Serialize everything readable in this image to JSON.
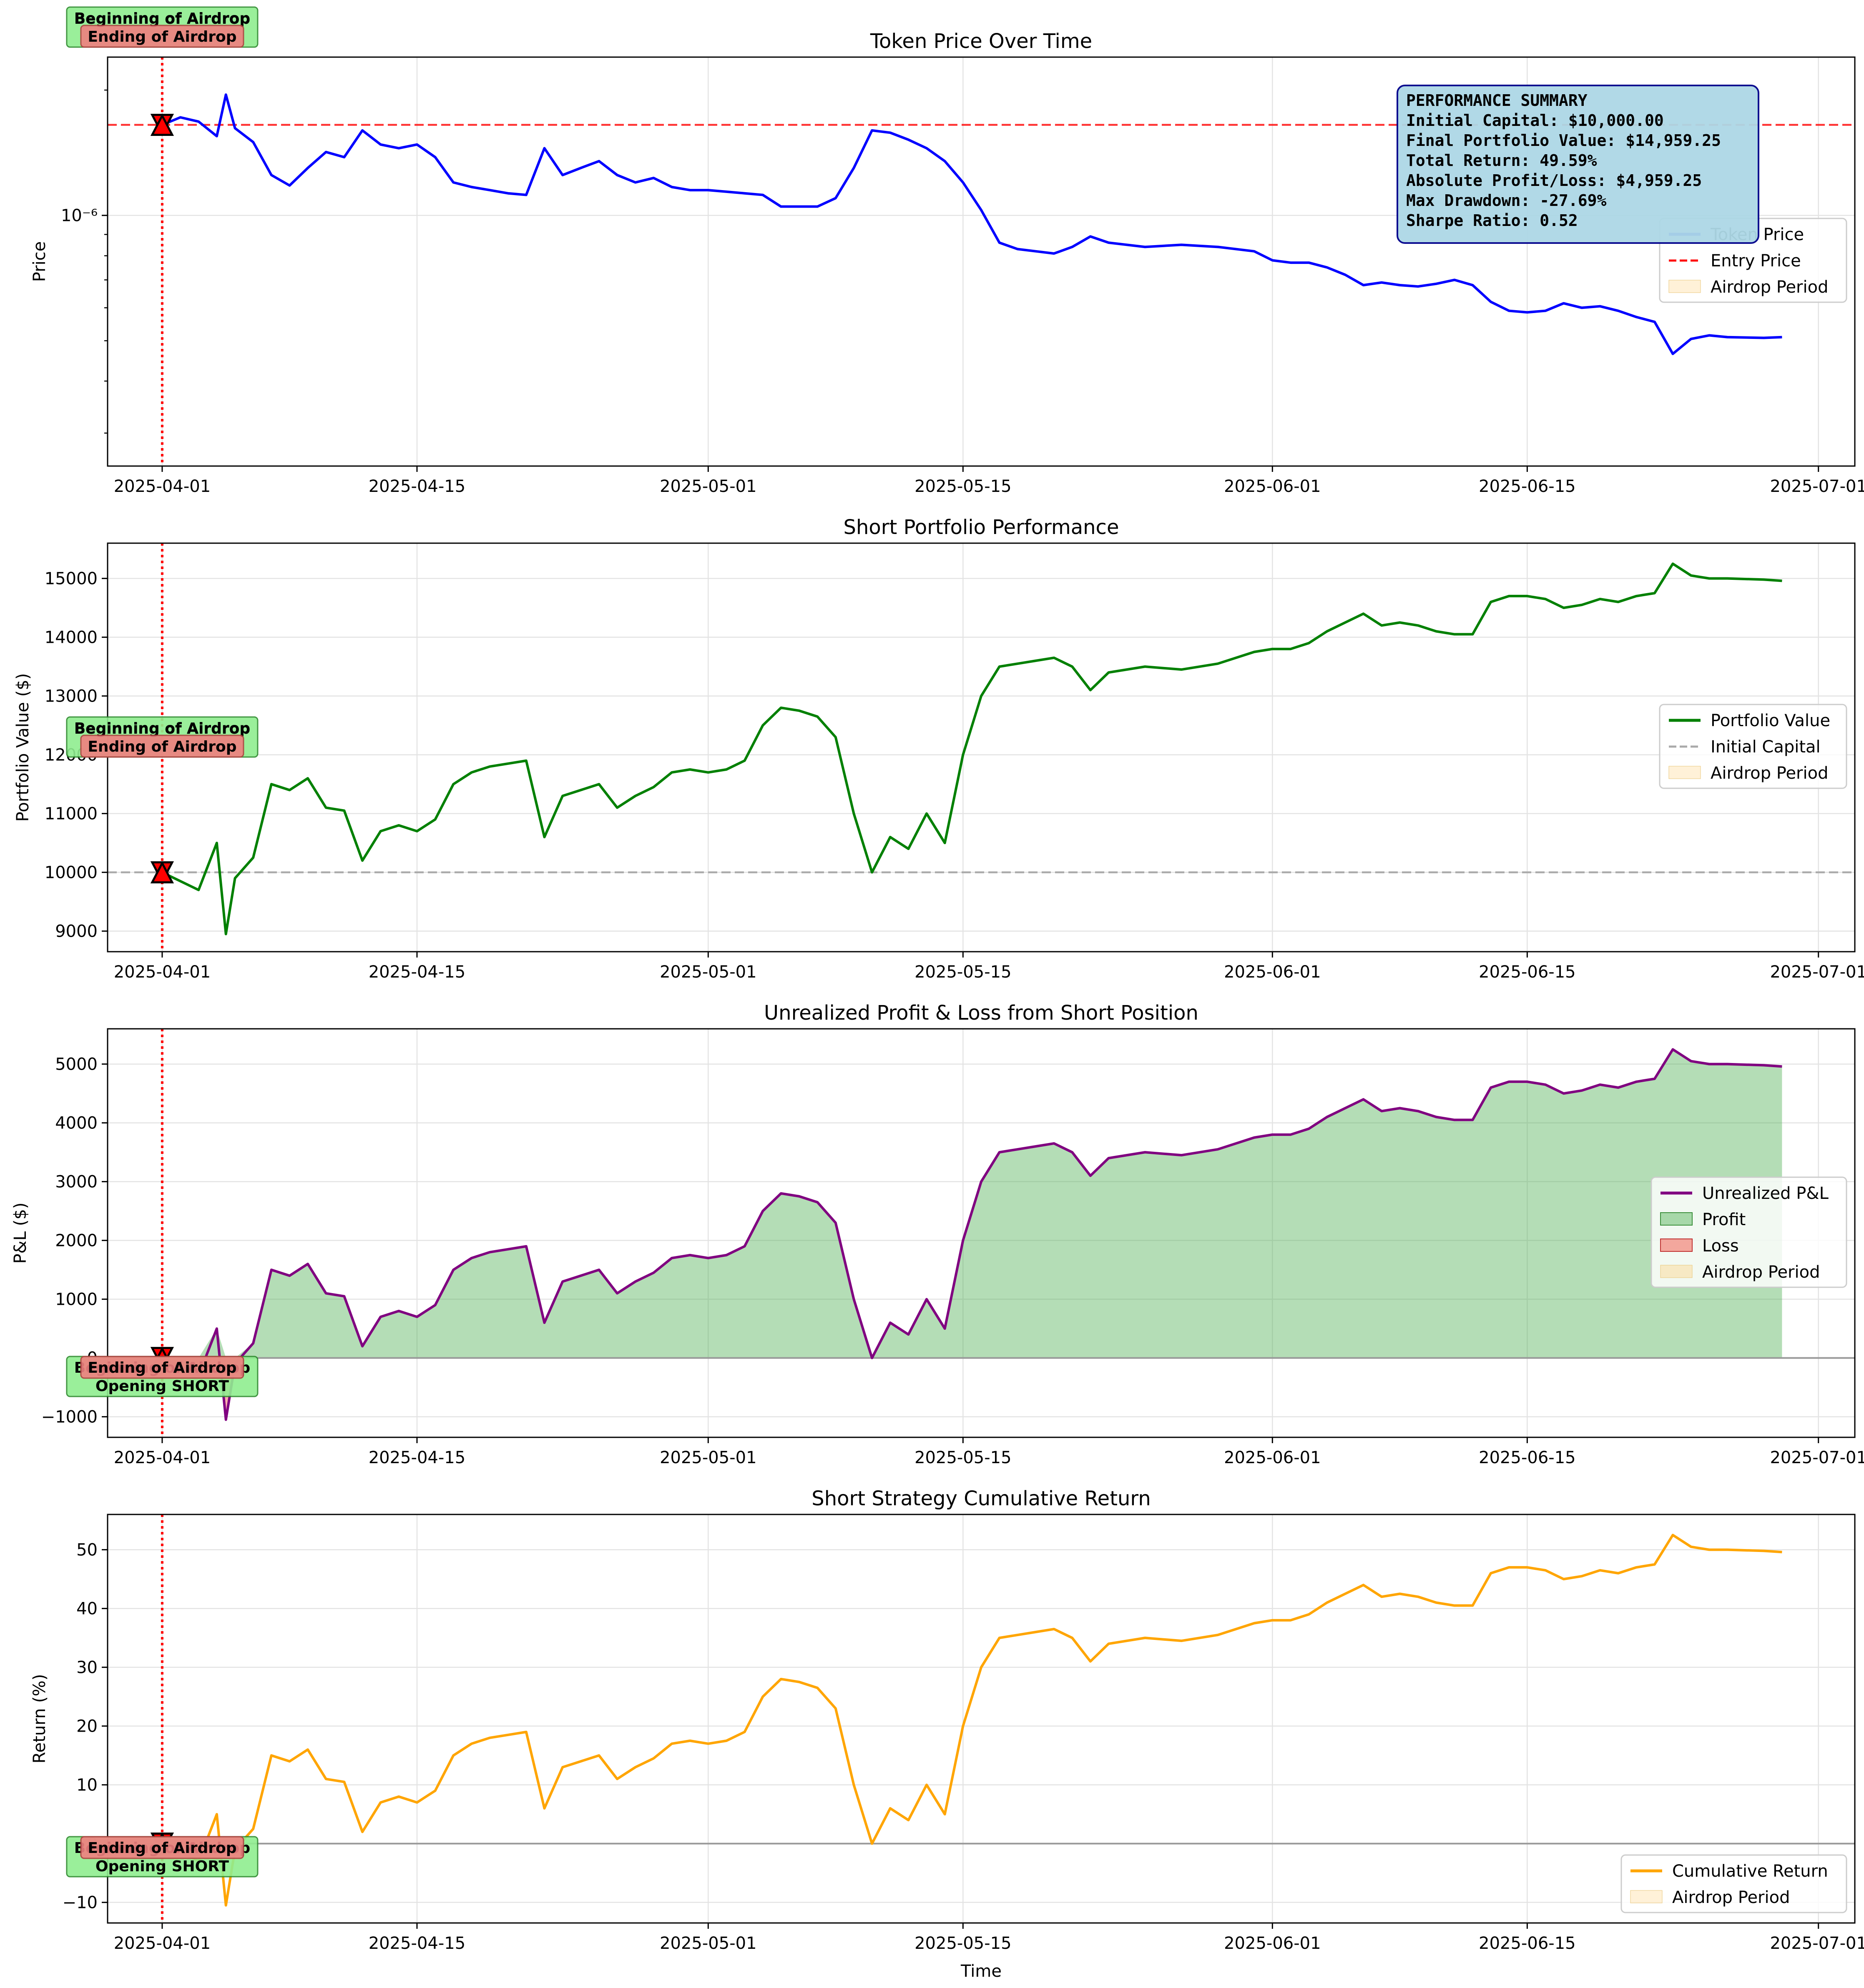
{
  "colors": {
    "price": "#0000ff",
    "portfolio": "#008000",
    "pnl": "#800080",
    "cumret": "#ffa500",
    "entry": "#ff0000",
    "initial": "#aaaaaa",
    "profit_fill": "#4caf50",
    "loss_fill": "#f44336",
    "airdrop_fill": "#ffd27f",
    "vline": "#ff0000",
    "ann_green_bg": "#90ee90",
    "ann_red_bg": "#f08080",
    "summary_bg": "#add8e6"
  },
  "xaxis": {
    "label": "Time",
    "range": [
      "2025-03-29",
      "2025-07-03"
    ],
    "ticks": [
      "2025-04-01",
      "2025-04-15",
      "2025-05-01",
      "2025-05-15",
      "2025-06-01",
      "2025-06-15",
      "2025-07-01"
    ]
  },
  "annotations": {
    "begin": "Beginning of Airdrop",
    "end": "Ending of Airdrop",
    "open_short": "Opening SHORT"
  },
  "chart_data": [
    {
      "type": "line",
      "title": "Token Price Over Time",
      "ylabel": "Price",
      "yscale": "log",
      "ylim": [
        2.5e-07,
        2.4e-06
      ],
      "yticks": [
        {
          "value": 1e-06,
          "label": "10⁻⁶"
        }
      ],
      "legend": {
        "placement": "right",
        "entries": [
          "Token Price",
          "Entry Price",
          "Airdrop Period"
        ]
      },
      "entry_price": 1.65e-06,
      "marker_date": "2025-04-01",
      "series": [
        {
          "name": "Token Price",
          "x": [
            "2025-04-01",
            "2025-04-02",
            "2025-04-03",
            "2025-04-04",
            "2025-04-04T12",
            "2025-04-05",
            "2025-04-06",
            "2025-04-07",
            "2025-04-08",
            "2025-04-09",
            "2025-04-10",
            "2025-04-11",
            "2025-04-12",
            "2025-04-13",
            "2025-04-14",
            "2025-04-15",
            "2025-04-16",
            "2025-04-17",
            "2025-04-18",
            "2025-04-19",
            "2025-04-20",
            "2025-04-21",
            "2025-04-22",
            "2025-04-23",
            "2025-04-24",
            "2025-04-25",
            "2025-04-26",
            "2025-04-27",
            "2025-04-28",
            "2025-04-29",
            "2025-04-30",
            "2025-05-01",
            "2025-05-02",
            "2025-05-03",
            "2025-05-04",
            "2025-05-05",
            "2025-05-06",
            "2025-05-07",
            "2025-05-08",
            "2025-05-09",
            "2025-05-10",
            "2025-05-11",
            "2025-05-12",
            "2025-05-13",
            "2025-05-14",
            "2025-05-15",
            "2025-05-16",
            "2025-05-17",
            "2025-05-18",
            "2025-05-19",
            "2025-05-20",
            "2025-05-21",
            "2025-05-22",
            "2025-05-23",
            "2025-05-25",
            "2025-05-27",
            "2025-05-29",
            "2025-05-31",
            "2025-06-01",
            "2025-06-02",
            "2025-06-03",
            "2025-06-04",
            "2025-06-05",
            "2025-06-06",
            "2025-06-07",
            "2025-06-08",
            "2025-06-09",
            "2025-06-10",
            "2025-06-11",
            "2025-06-12",
            "2025-06-13",
            "2025-06-14",
            "2025-06-15",
            "2025-06-16",
            "2025-06-17",
            "2025-06-18",
            "2025-06-19",
            "2025-06-20",
            "2025-06-21",
            "2025-06-22",
            "2025-06-23",
            "2025-06-24",
            "2025-06-25",
            "2025-06-26",
            "2025-06-28",
            "2025-06-29"
          ],
          "y": [
            1.65e-06,
            1.72e-06,
            1.68e-06,
            1.55e-06,
            1.95e-06,
            1.62e-06,
            1.5e-06,
            1.25e-06,
            1.18e-06,
            1.3e-06,
            1.42e-06,
            1.38e-06,
            1.6e-06,
            1.48e-06,
            1.45e-06,
            1.48e-06,
            1.38e-06,
            1.2e-06,
            1.17e-06,
            1.15e-06,
            1.13e-06,
            1.12e-06,
            1.45e-06,
            1.25e-06,
            1.3e-06,
            1.35e-06,
            1.25e-06,
            1.2e-06,
            1.23e-06,
            1.17e-06,
            1.15e-06,
            1.15e-06,
            1.14e-06,
            1.13e-06,
            1.12e-06,
            1.05e-06,
            1.05e-06,
            1.05e-06,
            1.1e-06,
            1.3e-06,
            1.6e-06,
            1.58e-06,
            1.52e-06,
            1.45e-06,
            1.35e-06,
            1.2e-06,
            1.03e-06,
            8.6e-07,
            8.3e-07,
            8.2e-07,
            8.1e-07,
            8.4e-07,
            8.9e-07,
            8.6e-07,
            8.4e-07,
            8.5e-07,
            8.4e-07,
            8.2e-07,
            7.8e-07,
            7.7e-07,
            7.7e-07,
            7.5e-07,
            7.2e-07,
            6.8e-07,
            6.9e-07,
            6.8e-07,
            6.75e-07,
            6.85e-07,
            7e-07,
            6.8e-07,
            6.2e-07,
            5.9e-07,
            5.85e-07,
            5.9e-07,
            6.15e-07,
            6e-07,
            6.05e-07,
            5.9e-07,
            5.7e-07,
            5.55e-07,
            4.65e-07,
            5.05e-07,
            5.15e-07,
            5.1e-07,
            5.08e-07,
            5.1e-07
          ]
        }
      ]
    },
    {
      "type": "line",
      "title": "Short Portfolio Performance",
      "ylabel": "Portfolio Value ($)",
      "ylim": [
        8650,
        15600
      ],
      "yticks": [
        9000,
        10000,
        11000,
        12000,
        13000,
        14000,
        15000
      ],
      "legend": {
        "placement": "right",
        "entries": [
          "Portfolio Value",
          "Initial Capital",
          "Airdrop Period"
        ]
      },
      "initial_capital": 10000,
      "marker_date": "2025-04-01",
      "series": [
        {
          "name": "Portfolio Value",
          "x": [
            "2025-04-01",
            "2025-04-02",
            "2025-04-03",
            "2025-04-04",
            "2025-04-04T12",
            "2025-04-05",
            "2025-04-06",
            "2025-04-07",
            "2025-04-08",
            "2025-04-09",
            "2025-04-10",
            "2025-04-11",
            "2025-04-12",
            "2025-04-13",
            "2025-04-14",
            "2025-04-15",
            "2025-04-16",
            "2025-04-17",
            "2025-04-18",
            "2025-04-19",
            "2025-04-20",
            "2025-04-21",
            "2025-04-22",
            "2025-04-23",
            "2025-04-24",
            "2025-04-25",
            "2025-04-26",
            "2025-04-27",
            "2025-04-28",
            "2025-04-29",
            "2025-04-30",
            "2025-05-01",
            "2025-05-02",
            "2025-05-03",
            "2025-05-04",
            "2025-05-05",
            "2025-05-06",
            "2025-05-07",
            "2025-05-08",
            "2025-05-09",
            "2025-05-10",
            "2025-05-11",
            "2025-05-12",
            "2025-05-13",
            "2025-05-14",
            "2025-05-15",
            "2025-05-16",
            "2025-05-17",
            "2025-05-18",
            "2025-05-19",
            "2025-05-20",
            "2025-05-21",
            "2025-05-22",
            "2025-05-23",
            "2025-05-25",
            "2025-05-27",
            "2025-05-29",
            "2025-05-31",
            "2025-06-01",
            "2025-06-02",
            "2025-06-03",
            "2025-06-04",
            "2025-06-05",
            "2025-06-06",
            "2025-06-07",
            "2025-06-08",
            "2025-06-09",
            "2025-06-10",
            "2025-06-11",
            "2025-06-12",
            "2025-06-13",
            "2025-06-14",
            "2025-06-15",
            "2025-06-16",
            "2025-06-17",
            "2025-06-18",
            "2025-06-19",
            "2025-06-20",
            "2025-06-21",
            "2025-06-22",
            "2025-06-23",
            "2025-06-24",
            "2025-06-25",
            "2025-06-26",
            "2025-06-28",
            "2025-06-29"
          ],
          "y": [
            10000,
            9850,
            9700,
            10500,
            8950,
            9900,
            10250,
            11500,
            11400,
            11600,
            11100,
            11050,
            10200,
            10700,
            10800,
            10700,
            10900,
            11500,
            11700,
            11800,
            11850,
            11900,
            10600,
            11300,
            11400,
            11500,
            11100,
            11300,
            11450,
            11700,
            11750,
            11700,
            11750,
            11900,
            12500,
            12800,
            12750,
            12650,
            12300,
            11000,
            10000,
            10600,
            10400,
            11000,
            10500,
            12000,
            13000,
            13500,
            13550,
            13600,
            13650,
            13500,
            13100,
            13400,
            13500,
            13450,
            13550,
            13750,
            13800,
            13800,
            13900,
            14100,
            14250,
            14400,
            14200,
            14250,
            14200,
            14100,
            14050,
            14050,
            14600,
            14700,
            14700,
            14650,
            14500,
            14550,
            14650,
            14600,
            14700,
            14750,
            15250,
            15050,
            15000,
            15000,
            14980,
            14959
          ]
        }
      ]
    },
    {
      "type": "area",
      "title": "Unrealized Profit & Loss from Short Position",
      "ylabel": "P&L ($)",
      "ylim": [
        -1350,
        5600
      ],
      "yticks": [
        -1000,
        0,
        1000,
        2000,
        3000,
        4000,
        5000
      ],
      "legend": {
        "placement": "right",
        "entries": [
          "Unrealized P&L",
          "Profit",
          "Loss",
          "Airdrop Period"
        ]
      },
      "marker_date": "2025-04-01",
      "series": [
        {
          "name": "Unrealized P&L",
          "x": [
            "2025-04-01",
            "2025-04-02",
            "2025-04-03",
            "2025-04-04",
            "2025-04-04T12",
            "2025-04-05",
            "2025-04-06",
            "2025-04-07",
            "2025-04-08",
            "2025-04-09",
            "2025-04-10",
            "2025-04-11",
            "2025-04-12",
            "2025-04-13",
            "2025-04-14",
            "2025-04-15",
            "2025-04-16",
            "2025-04-17",
            "2025-04-18",
            "2025-04-19",
            "2025-04-20",
            "2025-04-21",
            "2025-04-22",
            "2025-04-23",
            "2025-04-24",
            "2025-04-25",
            "2025-04-26",
            "2025-04-27",
            "2025-04-28",
            "2025-04-29",
            "2025-04-30",
            "2025-05-01",
            "2025-05-02",
            "2025-05-03",
            "2025-05-04",
            "2025-05-05",
            "2025-05-06",
            "2025-05-07",
            "2025-05-08",
            "2025-05-09",
            "2025-05-10",
            "2025-05-11",
            "2025-05-12",
            "2025-05-13",
            "2025-05-14",
            "2025-05-15",
            "2025-05-16",
            "2025-05-17",
            "2025-05-18",
            "2025-05-19",
            "2025-05-20",
            "2025-05-21",
            "2025-05-22",
            "2025-05-23",
            "2025-05-25",
            "2025-05-27",
            "2025-05-29",
            "2025-05-31",
            "2025-06-01",
            "2025-06-02",
            "2025-06-03",
            "2025-06-04",
            "2025-06-05",
            "2025-06-06",
            "2025-06-07",
            "2025-06-08",
            "2025-06-09",
            "2025-06-10",
            "2025-06-11",
            "2025-06-12",
            "2025-06-13",
            "2025-06-14",
            "2025-06-15",
            "2025-06-16",
            "2025-06-17",
            "2025-06-18",
            "2025-06-19",
            "2025-06-20",
            "2025-06-21",
            "2025-06-22",
            "2025-06-23",
            "2025-06-24",
            "2025-06-25",
            "2025-06-26",
            "2025-06-28",
            "2025-06-29"
          ],
          "y": [
            0,
            -150,
            -300,
            500,
            -1050,
            -100,
            250,
            1500,
            1400,
            1600,
            1100,
            1050,
            200,
            700,
            800,
            700,
            900,
            1500,
            1700,
            1800,
            1850,
            1900,
            600,
            1300,
            1400,
            1500,
            1100,
            1300,
            1450,
            1700,
            1750,
            1700,
            1750,
            1900,
            2500,
            2800,
            2750,
            2650,
            2300,
            1000,
            0,
            600,
            400,
            1000,
            500,
            2000,
            3000,
            3500,
            3550,
            3600,
            3650,
            3500,
            3100,
            3400,
            3500,
            3450,
            3550,
            3750,
            3800,
            3800,
            3900,
            4100,
            4250,
            4400,
            4200,
            4250,
            4200,
            4100,
            4050,
            4050,
            4600,
            4700,
            4700,
            4650,
            4500,
            4550,
            4650,
            4600,
            4700,
            4750,
            5250,
            5050,
            5000,
            5000,
            4980,
            4959
          ]
        }
      ]
    },
    {
      "type": "line",
      "title": "Short Strategy Cumulative Return",
      "ylabel": "Return (%)",
      "ylim": [
        -13.5,
        56
      ],
      "yticks": [
        -10,
        0,
        10,
        20,
        30,
        40,
        50
      ],
      "legend": {
        "placement": "lower right",
        "entries": [
          "Cumulative Return",
          "Airdrop Period"
        ]
      },
      "marker_date": "2025-04-01",
      "series": [
        {
          "name": "Cumulative Return",
          "x": [
            "2025-04-01",
            "2025-04-02",
            "2025-04-03",
            "2025-04-04",
            "2025-04-04T12",
            "2025-04-05",
            "2025-04-06",
            "2025-04-07",
            "2025-04-08",
            "2025-04-09",
            "2025-04-10",
            "2025-04-11",
            "2025-04-12",
            "2025-04-13",
            "2025-04-14",
            "2025-04-15",
            "2025-04-16",
            "2025-04-17",
            "2025-04-18",
            "2025-04-19",
            "2025-04-20",
            "2025-04-21",
            "2025-04-22",
            "2025-04-23",
            "2025-04-24",
            "2025-04-25",
            "2025-04-26",
            "2025-04-27",
            "2025-04-28",
            "2025-04-29",
            "2025-04-30",
            "2025-05-01",
            "2025-05-02",
            "2025-05-03",
            "2025-05-04",
            "2025-05-05",
            "2025-05-06",
            "2025-05-07",
            "2025-05-08",
            "2025-05-09",
            "2025-05-10",
            "2025-05-11",
            "2025-05-12",
            "2025-05-13",
            "2025-05-14",
            "2025-05-15",
            "2025-05-16",
            "2025-05-17",
            "2025-05-18",
            "2025-05-19",
            "2025-05-20",
            "2025-05-21",
            "2025-05-22",
            "2025-05-23",
            "2025-05-25",
            "2025-05-27",
            "2025-05-29",
            "2025-05-31",
            "2025-06-01",
            "2025-06-02",
            "2025-06-03",
            "2025-06-04",
            "2025-06-05",
            "2025-06-06",
            "2025-06-07",
            "2025-06-08",
            "2025-06-09",
            "2025-06-10",
            "2025-06-11",
            "2025-06-12",
            "2025-06-13",
            "2025-06-14",
            "2025-06-15",
            "2025-06-16",
            "2025-06-17",
            "2025-06-18",
            "2025-06-19",
            "2025-06-20",
            "2025-06-21",
            "2025-06-22",
            "2025-06-23",
            "2025-06-24",
            "2025-06-25",
            "2025-06-26",
            "2025-06-28",
            "2025-06-29"
          ],
          "y": [
            0,
            -1.5,
            -3,
            5,
            -10.5,
            -1,
            2.5,
            15,
            14,
            16,
            11,
            10.5,
            2,
            7,
            8,
            7,
            9,
            15,
            17,
            18,
            18.5,
            19,
            6,
            13,
            14,
            15,
            11,
            13,
            14.5,
            17,
            17.5,
            17,
            17.5,
            19,
            25,
            28,
            27.5,
            26.5,
            23,
            10,
            0,
            6,
            4,
            10,
            5,
            20,
            30,
            35,
            35.5,
            36,
            36.5,
            35,
            31,
            34,
            35,
            34.5,
            35.5,
            37.5,
            38,
            38,
            39,
            41,
            42.5,
            44,
            42,
            42.5,
            42,
            41,
            40.5,
            40.5,
            46,
            47,
            47,
            46.5,
            45,
            45.5,
            46.5,
            46,
            47,
            47.5,
            52.5,
            50.5,
            50,
            50,
            49.8,
            49.6
          ]
        }
      ]
    }
  ],
  "summary": {
    "title": "PERFORMANCE SUMMARY",
    "lines": [
      "Initial Capital: $10,000.00",
      "Final Portfolio Value: $14,959.25",
      "Total Return: 49.59%",
      "Absolute Profit/Loss: $4,959.25",
      "Max Drawdown: -27.69%",
      "Sharpe Ratio: 0.52"
    ]
  }
}
